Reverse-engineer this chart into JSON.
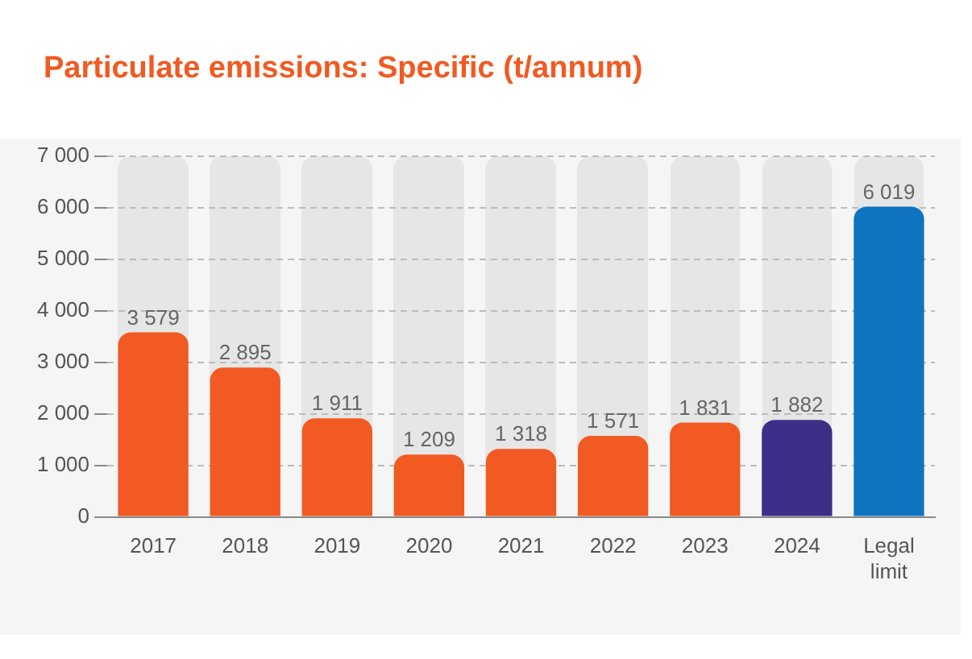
{
  "chart_data": {
    "type": "bar",
    "title": "Particulate emissions: Specific (t/annum)",
    "categories": [
      "2017",
      "2018",
      "2019",
      "2020",
      "2021",
      "2022",
      "2023",
      "2024",
      "Legal limit"
    ],
    "colors": [
      "#f15a22",
      "#f15a22",
      "#f15a22",
      "#f15a22",
      "#f15a22",
      "#f15a22",
      "#f15a22",
      "#3b2f87",
      "#0f74bf"
    ],
    "values": [
      3579,
      2895,
      1911,
      1209,
      1318,
      1571,
      1831,
      1882,
      6019
    ],
    "value_labels": [
      "3 579",
      "2 895",
      "1 911",
      "1 209",
      "1 318",
      "1 571",
      "1 831",
      "1 882",
      "6 019"
    ],
    "ylim": [
      0,
      7000
    ],
    "yticks": [
      0,
      {
        "value": 1000,
        "label": "1 000"
      },
      {
        "value": 2000,
        "label": "2 000"
      },
      {
        "value": 3000,
        "label": "3 000"
      },
      {
        "value": 4000,
        "label": "4 000"
      },
      {
        "value": 5000,
        "label": "5 000"
      },
      {
        "value": 6000,
        "label": "6 000"
      },
      {
        "value": 7000,
        "label": "7 000"
      }
    ],
    "grid": "y",
    "legend": false
  }
}
